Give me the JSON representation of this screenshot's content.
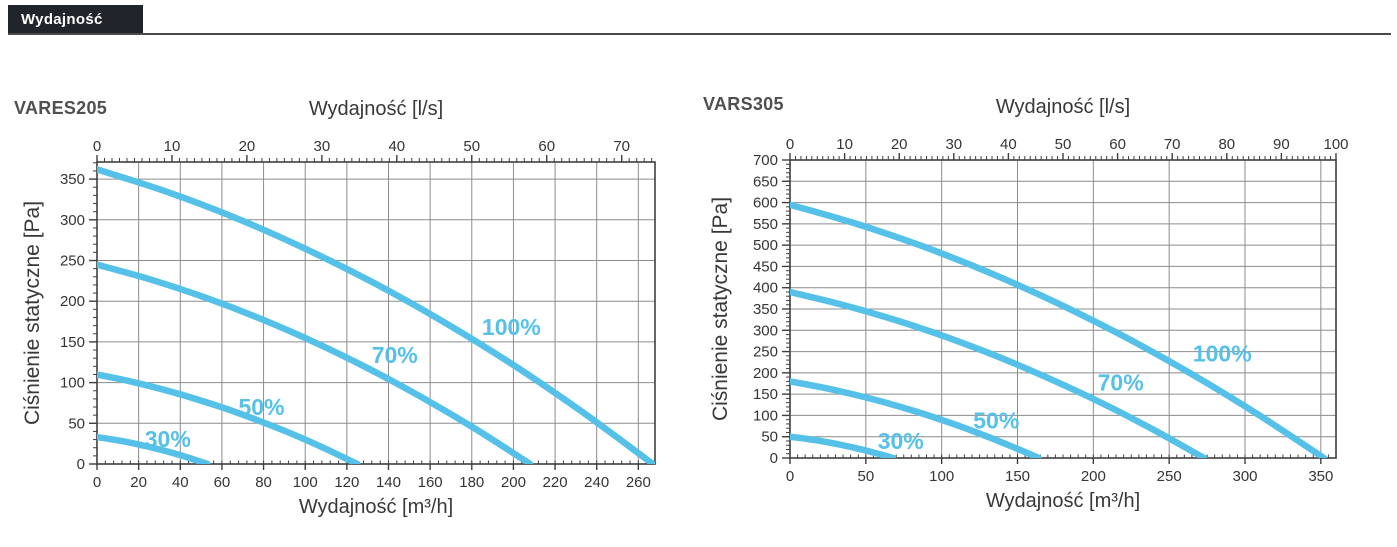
{
  "header": {
    "title": "Wydajność"
  },
  "colors": {
    "curve": "#55c1e9",
    "grid": "#8c8c8c",
    "axis": "#3f3f3f",
    "tick_text": "#353535",
    "title_text": "#4f4f4f",
    "header_bg": "#21252b",
    "header_text": "#ffffff"
  },
  "chart_data": [
    {
      "type": "line",
      "title": "VARES205",
      "xlabel": "Wydajność [m³/h]",
      "xlabel_top": "Wydajność [l/s]",
      "ylabel": "Ciśnienie statyczne [Pa]",
      "xlim": [
        0,
        268
      ],
      "ylim": [
        0,
        371
      ],
      "xlim_top_ls": [
        0,
        74.4
      ],
      "x_ticks": [
        0,
        20,
        40,
        60,
        80,
        100,
        120,
        140,
        160,
        180,
        200,
        220,
        240,
        260
      ],
      "y_ticks": [
        0,
        50,
        100,
        150,
        200,
        250,
        300,
        350
      ],
      "top_ticks_ls": [
        0,
        10,
        20,
        30,
        40,
        50,
        60,
        70
      ],
      "x_minor_step": 4,
      "y_minor_step": 10,
      "top_minor_step_ls": 1,
      "grid": true,
      "legend": "inline-curve-labels",
      "series": [
        {
          "name": "30%",
          "x": [
            0,
            6.6,
            13.3,
            19.9,
            26.5,
            33.1,
            39.8,
            46.4,
            53
          ],
          "y": [
            33,
            30.5,
            27.5,
            24.1,
            20.2,
            15.9,
            11.0,
            5.7,
            0
          ],
          "label_at": [
            34,
            31
          ]
        },
        {
          "name": "50%",
          "x": [
            0,
            15.6,
            31.3,
            46.9,
            62.5,
            78.1,
            93.8,
            109.4,
            125
          ],
          "y": [
            110,
            101.7,
            91.8,
            80.4,
            67.4,
            52.8,
            36.8,
            19.2,
            0
          ],
          "label_at": [
            79,
            70
          ]
        },
        {
          "name": "70%",
          "x": [
            0,
            26,
            52,
            78,
            104,
            130,
            156,
            182,
            208
          ],
          "y": [
            245,
            226.4,
            204.4,
            179.0,
            150.1,
            117.7,
            81.9,
            42.7,
            0
          ],
          "label_at": [
            143,
            134
          ]
        },
        {
          "name": "100%",
          "x": [
            0,
            33.4,
            66.8,
            100.1,
            133.5,
            166.9,
            200.3,
            233.6,
            267
          ],
          "y": [
            362,
            334.5,
            302.1,
            264.4,
            221.7,
            173.9,
            121.1,
            63.0,
            0
          ],
          "label_at": [
            199,
            168
          ]
        }
      ]
    },
    {
      "type": "line",
      "title": "VARS305",
      "xlabel": "Wydajność [m³/h]",
      "xlabel_top": "Wydajność [l/s]",
      "ylabel": "Ciśnienie statyczne [Pa]",
      "xlim": [
        0,
        360
      ],
      "ylim": [
        0,
        700
      ],
      "xlim_top_ls": [
        0,
        100
      ],
      "x_ticks": [
        0,
        50,
        100,
        150,
        200,
        250,
        300,
        350
      ],
      "y_ticks": [
        0,
        50,
        100,
        150,
        200,
        250,
        300,
        350,
        400,
        450,
        500,
        550,
        600,
        650,
        700
      ],
      "top_ticks_ls": [
        0,
        10,
        20,
        30,
        40,
        50,
        60,
        70,
        80,
        90,
        100
      ],
      "x_minor_step": 5,
      "y_minor_step": 10,
      "top_minor_step_ls": 1,
      "grid": true,
      "legend": "inline-curve-labels",
      "series": [
        {
          "name": "30%",
          "x": [
            0,
            8.5,
            17,
            25.5,
            34,
            42.5,
            51,
            59.5,
            68
          ],
          "y": [
            50,
            46.2,
            41.7,
            36.5,
            30.6,
            24.0,
            16.7,
            8.7,
            0
          ],
          "label_at": [
            73,
            40
          ]
        },
        {
          "name": "50%",
          "x": [
            0,
            20.5,
            41,
            61.5,
            82,
            102.5,
            123,
            143.5,
            164
          ],
          "y": [
            180,
            166.3,
            150.2,
            131.5,
            110.3,
            86.5,
            60.2,
            31.3,
            0
          ],
          "label_at": [
            136,
            88
          ]
        },
        {
          "name": "70%",
          "x": [
            0,
            34.1,
            68.3,
            102.4,
            136.5,
            170.6,
            204.8,
            238.9,
            273
          ],
          "y": [
            390,
            360.4,
            325.4,
            284.9,
            238.9,
            187.3,
            130.4,
            67.9,
            0
          ],
          "label_at": [
            218,
            177
          ]
        },
        {
          "name": "100%",
          "x": [
            0,
            44,
            88,
            132,
            176,
            220,
            264,
            308,
            352
          ],
          "y": [
            595,
            549.8,
            496.5,
            434.6,
            364.4,
            285.8,
            199.0,
            103.6,
            0
          ],
          "label_at": [
            285,
            245
          ]
        }
      ]
    }
  ]
}
